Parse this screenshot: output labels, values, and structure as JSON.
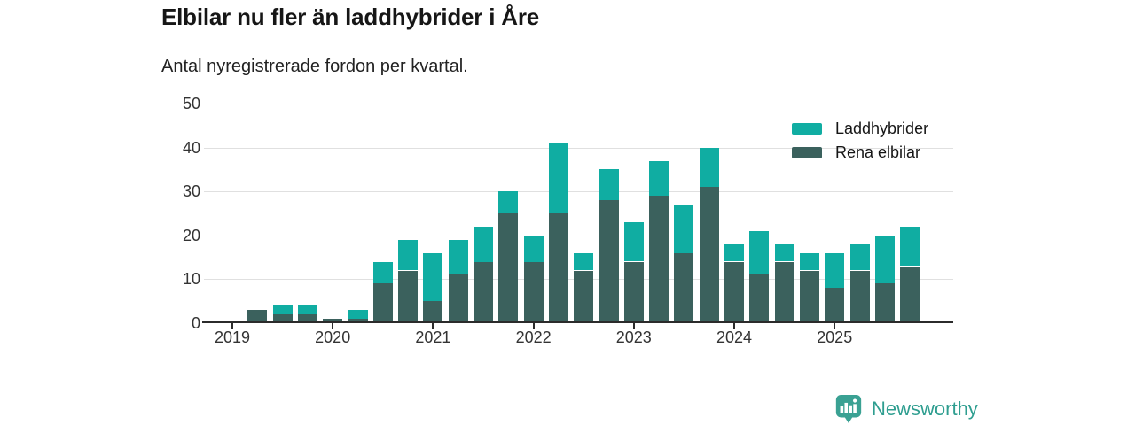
{
  "title": "Elbilar nu fler än laddhybrider i Åre",
  "subtitle": "Antal nyregistrerade fordon per kvartal.",
  "brand": {
    "name": "Newsworthy"
  },
  "colors": {
    "laddhybrider": "#10ada2",
    "rena_elbilar": "#3b615d",
    "gridline": "#e0e0e0",
    "axis": "#2b2b2b",
    "tick_text": "#333333",
    "brand_teal": "#3aa193"
  },
  "chart_data": {
    "type": "bar",
    "stacked": true,
    "title": "Elbilar nu fler än laddhybrider i Åre",
    "subtitle": "Antal nyregistrerade fordon per kvartal.",
    "xlabel": "",
    "ylabel": "",
    "categories": [
      "2019 Q1",
      "2019 Q2",
      "2019 Q3",
      "2019 Q4",
      "2020 Q1",
      "2020 Q2",
      "2020 Q3",
      "2020 Q4",
      "2021 Q1",
      "2021 Q2",
      "2021 Q3",
      "2021 Q4",
      "2022 Q1",
      "2022 Q2",
      "2022 Q3",
      "2022 Q4",
      "2023 Q1",
      "2023 Q2",
      "2023 Q3",
      "2023 Q4",
      "2024 Q1",
      "2024 Q2",
      "2024 Q3",
      "2024 Q4",
      "2025 Q1",
      "2025 Q2",
      "2025 Q3",
      "2025 Q4"
    ],
    "series": [
      {
        "name": "Rena elbilar",
        "color": "#3b615d",
        "values": [
          0,
          3,
          2,
          2,
          1,
          1,
          9,
          12,
          5,
          11,
          14,
          25,
          14,
          25,
          12,
          28,
          14,
          29,
          16,
          31,
          14,
          11,
          14,
          12,
          8,
          12,
          9,
          13
        ]
      },
      {
        "name": "Laddhybrider",
        "color": "#10ada2",
        "values": [
          0,
          0,
          2,
          2,
          0,
          2,
          5,
          7,
          11,
          8,
          8,
          5,
          6,
          16,
          4,
          7,
          9,
          8,
          11,
          9,
          4,
          10,
          4,
          4,
          8,
          6,
          11,
          9
        ]
      }
    ],
    "totals": [
      0,
      3,
      4,
      4,
      1,
      3,
      14,
      19,
      16,
      19,
      22,
      30,
      20,
      41,
      16,
      35,
      23,
      37,
      27,
      40,
      18,
      21,
      18,
      16,
      16,
      18,
      20,
      22
    ],
    "legend_order": [
      "Laddhybrider",
      "Rena elbilar"
    ],
    "legend_position": "top-right",
    "x_tick_labels": [
      "2019",
      "2020",
      "2021",
      "2022",
      "2023",
      "2024",
      "2025"
    ],
    "x_tick_quarter_indices": [
      0,
      4,
      8,
      12,
      16,
      20,
      24
    ],
    "y_ticks": [
      0,
      10,
      20,
      30,
      40,
      50
    ],
    "ylim": [
      0,
      50
    ],
    "grid": true
  }
}
